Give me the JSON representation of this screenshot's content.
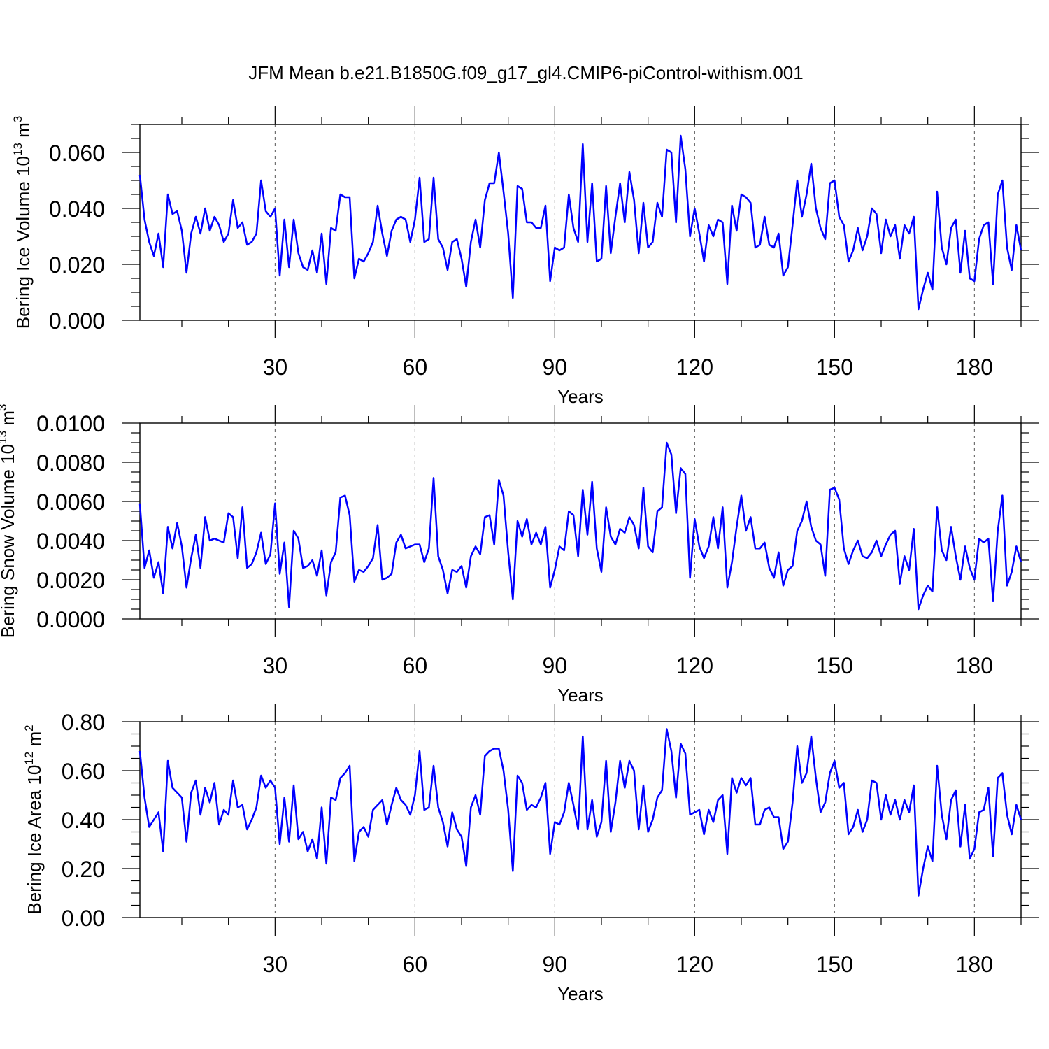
{
  "figure": {
    "title": "JFM Mean b.e21.B1850G.f09_g17_gl4.CMIP6-piControl-withism.001"
  },
  "chart_data": [
    {
      "type": "line",
      "title": "",
      "xlabel": "Years",
      "ylabel": "Bering Ice Volume 10",
      "ylabel_unit": "m",
      "ylabel_exp": "13",
      "ylabel_unit_exp": "3",
      "xlim": [
        1,
        190
      ],
      "xticks": [
        30,
        60,
        90,
        120,
        150,
        180
      ],
      "xtick_labels": [
        "30",
        "60",
        "90",
        "120",
        "150",
        "180"
      ],
      "ylim": [
        0,
        0.07
      ],
      "yticks": [
        0.0,
        0.02,
        0.04,
        0.06
      ],
      "ytick_labels": [
        "0.000",
        "0.020",
        "0.040",
        "0.060"
      ],
      "ymin_step": 0.005,
      "grid": "vertical dashed at major x ticks",
      "color": "#0000ff",
      "x_start": 1,
      "values": [
        0.052,
        0.036,
        0.028,
        0.023,
        0.031,
        0.019,
        0.045,
        0.038,
        0.039,
        0.032,
        0.017,
        0.031,
        0.037,
        0.031,
        0.04,
        0.032,
        0.037,
        0.034,
        0.028,
        0.031,
        0.043,
        0.033,
        0.035,
        0.027,
        0.028,
        0.031,
        0.05,
        0.039,
        0.037,
        0.04,
        0.016,
        0.036,
        0.019,
        0.036,
        0.024,
        0.019,
        0.018,
        0.025,
        0.017,
        0.031,
        0.013,
        0.033,
        0.032,
        0.045,
        0.044,
        0.044,
        0.015,
        0.022,
        0.021,
        0.024,
        0.028,
        0.041,
        0.031,
        0.023,
        0.032,
        0.036,
        0.037,
        0.036,
        0.028,
        0.036,
        0.051,
        0.028,
        0.029,
        0.051,
        0.029,
        0.026,
        0.018,
        0.028,
        0.029,
        0.022,
        0.012,
        0.028,
        0.036,
        0.026,
        0.043,
        0.049,
        0.049,
        0.06,
        0.046,
        0.031,
        0.008,
        0.048,
        0.047,
        0.035,
        0.035,
        0.033,
        0.033,
        0.041,
        0.014,
        0.026,
        0.025,
        0.026,
        0.045,
        0.033,
        0.028,
        0.063,
        0.028,
        0.049,
        0.021,
        0.022,
        0.048,
        0.024,
        0.037,
        0.049,
        0.035,
        0.053,
        0.043,
        0.024,
        0.042,
        0.026,
        0.028,
        0.042,
        0.037,
        0.061,
        0.06,
        0.035,
        0.066,
        0.054,
        0.03,
        0.04,
        0.031,
        0.021,
        0.034,
        0.03,
        0.036,
        0.035,
        0.013,
        0.041,
        0.032,
        0.045,
        0.044,
        0.042,
        0.026,
        0.027,
        0.037,
        0.027,
        0.026,
        0.031,
        0.016,
        0.019,
        0.034,
        0.05,
        0.037,
        0.045,
        0.056,
        0.04,
        0.033,
        0.029,
        0.049,
        0.05,
        0.037,
        0.034,
        0.021,
        0.025,
        0.033,
        0.025,
        0.03,
        0.04,
        0.038,
        0.024,
        0.036,
        0.03,
        0.034,
        0.022,
        0.034,
        0.031,
        0.037,
        0.004,
        0.011,
        0.017,
        0.011,
        0.046,
        0.026,
        0.02,
        0.033,
        0.036,
        0.017,
        0.032,
        0.015,
        0.014,
        0.029,
        0.034,
        0.035,
        0.013,
        0.045,
        0.05,
        0.026,
        0.018,
        0.034,
        0.025
      ]
    },
    {
      "type": "line",
      "title": "",
      "xlabel": "Years",
      "ylabel": "Bering Snow Volume 10",
      "ylabel_unit": "m",
      "ylabel_exp": "13",
      "ylabel_unit_exp": "3",
      "xlim": [
        1,
        190
      ],
      "xticks": [
        30,
        60,
        90,
        120,
        150,
        180
      ],
      "xtick_labels": [
        "30",
        "60",
        "90",
        "120",
        "150",
        "180"
      ],
      "ylim": [
        0,
        0.01
      ],
      "yticks": [
        0.0,
        0.002,
        0.004,
        0.006,
        0.008,
        0.01
      ],
      "ytick_labels": [
        "0.0000",
        "0.0020",
        "0.0040",
        "0.0060",
        "0.0080",
        "0.0100"
      ],
      "ymin_step": 0.0005,
      "grid": "vertical dashed at major x ticks",
      "color": "#0000ff",
      "x_start": 1,
      "values": [
        0.0059,
        0.0026,
        0.0035,
        0.0021,
        0.0029,
        0.0013,
        0.0047,
        0.0036,
        0.0049,
        0.0037,
        0.0016,
        0.0031,
        0.0043,
        0.0026,
        0.0052,
        0.004,
        0.0041,
        0.004,
        0.0039,
        0.0054,
        0.0052,
        0.0031,
        0.0057,
        0.0026,
        0.0028,
        0.0034,
        0.0044,
        0.0028,
        0.0033,
        0.0059,
        0.0023,
        0.0039,
        0.0006,
        0.0045,
        0.0041,
        0.0026,
        0.0027,
        0.003,
        0.0022,
        0.0035,
        0.0012,
        0.0029,
        0.0034,
        0.0062,
        0.0063,
        0.0053,
        0.0019,
        0.0025,
        0.0024,
        0.0027,
        0.0031,
        0.0048,
        0.002,
        0.0021,
        0.0023,
        0.0039,
        0.0043,
        0.0036,
        0.0037,
        0.0038,
        0.0038,
        0.0029,
        0.0036,
        0.0072,
        0.0032,
        0.0025,
        0.0013,
        0.0025,
        0.0024,
        0.0027,
        0.0016,
        0.0032,
        0.0037,
        0.0033,
        0.0052,
        0.0053,
        0.0038,
        0.0071,
        0.0063,
        0.0034,
        0.001,
        0.005,
        0.0042,
        0.0051,
        0.0038,
        0.0044,
        0.0038,
        0.0047,
        0.0016,
        0.0025,
        0.0037,
        0.0035,
        0.0055,
        0.0053,
        0.0032,
        0.0066,
        0.0043,
        0.007,
        0.0036,
        0.0024,
        0.0057,
        0.0042,
        0.0038,
        0.0046,
        0.0044,
        0.0052,
        0.0048,
        0.0036,
        0.0067,
        0.0037,
        0.0034,
        0.0055,
        0.0057,
        0.009,
        0.0084,
        0.0054,
        0.0077,
        0.0074,
        0.0021,
        0.0051,
        0.0037,
        0.0031,
        0.0037,
        0.0052,
        0.0036,
        0.0057,
        0.0016,
        0.0029,
        0.0047,
        0.0063,
        0.0045,
        0.0052,
        0.0036,
        0.0036,
        0.0039,
        0.0026,
        0.0021,
        0.0034,
        0.0017,
        0.0025,
        0.0027,
        0.0045,
        0.005,
        0.006,
        0.0047,
        0.004,
        0.0038,
        0.0022,
        0.0066,
        0.0067,
        0.0061,
        0.0036,
        0.0028,
        0.0035,
        0.004,
        0.0032,
        0.0031,
        0.0034,
        0.004,
        0.0032,
        0.0038,
        0.0043,
        0.0045,
        0.0018,
        0.0032,
        0.0025,
        0.0046,
        0.0005,
        0.0012,
        0.0017,
        0.0014,
        0.0057,
        0.0035,
        0.003,
        0.0047,
        0.0032,
        0.002,
        0.0037,
        0.0026,
        0.002,
        0.0041,
        0.0039,
        0.0041,
        0.0009,
        0.0045,
        0.0063,
        0.0017,
        0.0024,
        0.0037,
        0.0029
      ]
    },
    {
      "type": "line",
      "title": "",
      "xlabel": "Years",
      "ylabel": "Bering Ice Area 10",
      "ylabel_unit": "m",
      "ylabel_exp": "12",
      "ylabel_unit_exp": "2",
      "xlim": [
        1,
        190
      ],
      "xticks": [
        30,
        60,
        90,
        120,
        150,
        180
      ],
      "xtick_labels": [
        "30",
        "60",
        "90",
        "120",
        "150",
        "180"
      ],
      "ylim": [
        0,
        0.8
      ],
      "yticks": [
        0.0,
        0.2,
        0.4,
        0.6,
        0.8
      ],
      "ytick_labels": [
        "0.00",
        "0.20",
        "0.40",
        "0.60",
        "0.80"
      ],
      "ymin_step": 0.05,
      "grid": "vertical dashed at major x ticks",
      "color": "#0000ff",
      "x_start": 1,
      "values": [
        0.68,
        0.49,
        0.37,
        0.4,
        0.43,
        0.27,
        0.64,
        0.53,
        0.51,
        0.49,
        0.31,
        0.51,
        0.56,
        0.42,
        0.53,
        0.47,
        0.55,
        0.38,
        0.44,
        0.42,
        0.56,
        0.45,
        0.46,
        0.36,
        0.4,
        0.45,
        0.58,
        0.53,
        0.56,
        0.53,
        0.3,
        0.49,
        0.31,
        0.54,
        0.32,
        0.35,
        0.27,
        0.32,
        0.24,
        0.45,
        0.22,
        0.49,
        0.48,
        0.57,
        0.59,
        0.62,
        0.23,
        0.35,
        0.37,
        0.33,
        0.44,
        0.46,
        0.48,
        0.38,
        0.46,
        0.53,
        0.48,
        0.46,
        0.42,
        0.5,
        0.68,
        0.44,
        0.45,
        0.62,
        0.45,
        0.39,
        0.29,
        0.43,
        0.36,
        0.33,
        0.21,
        0.45,
        0.5,
        0.42,
        0.66,
        0.68,
        0.69,
        0.69,
        0.6,
        0.44,
        0.19,
        0.58,
        0.55,
        0.44,
        0.46,
        0.45,
        0.49,
        0.55,
        0.26,
        0.39,
        0.38,
        0.43,
        0.55,
        0.46,
        0.36,
        0.74,
        0.36,
        0.48,
        0.33,
        0.39,
        0.64,
        0.35,
        0.47,
        0.64,
        0.53,
        0.64,
        0.6,
        0.36,
        0.54,
        0.35,
        0.4,
        0.49,
        0.52,
        0.77,
        0.68,
        0.49,
        0.71,
        0.67,
        0.42,
        0.43,
        0.44,
        0.34,
        0.44,
        0.39,
        0.48,
        0.5,
        0.26,
        0.57,
        0.51,
        0.57,
        0.54,
        0.57,
        0.38,
        0.38,
        0.44,
        0.45,
        0.41,
        0.41,
        0.28,
        0.31,
        0.47,
        0.7,
        0.55,
        0.59,
        0.74,
        0.57,
        0.43,
        0.47,
        0.59,
        0.64,
        0.53,
        0.55,
        0.34,
        0.37,
        0.44,
        0.35,
        0.4,
        0.56,
        0.55,
        0.4,
        0.5,
        0.42,
        0.48,
        0.4,
        0.48,
        0.43,
        0.54,
        0.09,
        0.2,
        0.29,
        0.23,
        0.62,
        0.42,
        0.32,
        0.48,
        0.52,
        0.29,
        0.46,
        0.24,
        0.28,
        0.43,
        0.44,
        0.53,
        0.25,
        0.57,
        0.59,
        0.42,
        0.34,
        0.46,
        0.4
      ]
    }
  ]
}
